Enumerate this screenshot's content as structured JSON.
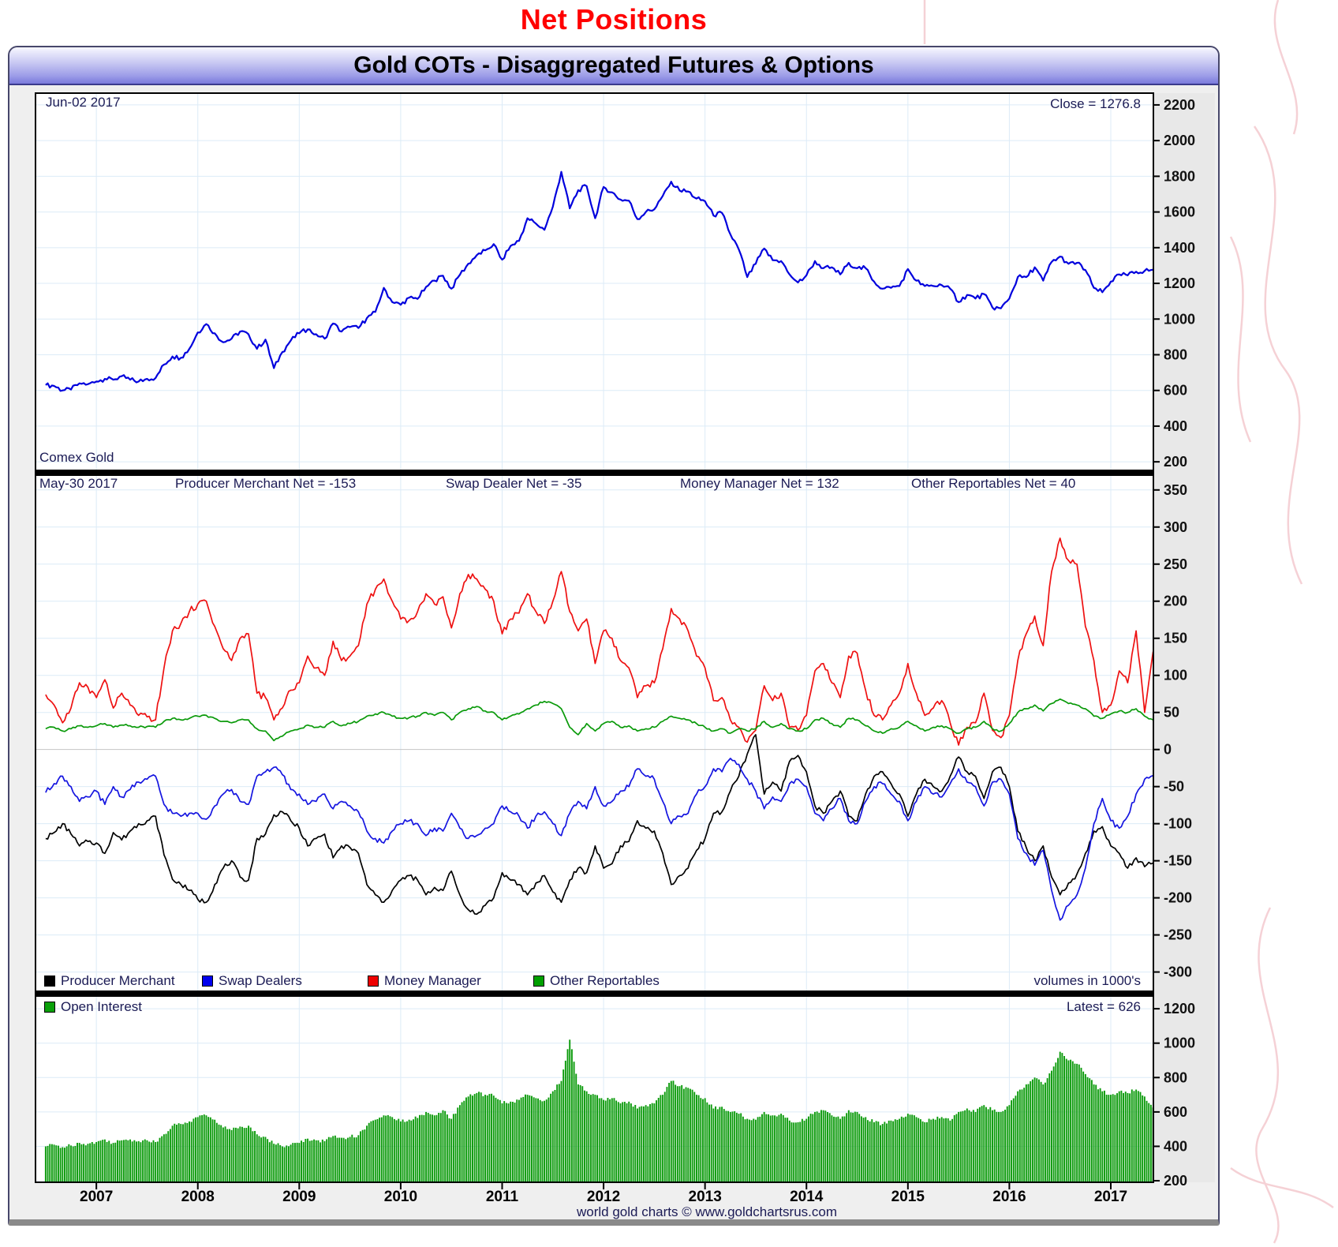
{
  "page_title": "Net Positions",
  "window": {
    "title": "Gold COTs - Disaggregated Futures & Options"
  },
  "panels": {
    "price": {
      "date_label": "Jun-02  2017",
      "close_label": "Close = 1276.8",
      "name_label": "Comex Gold"
    },
    "nets": {
      "date_label": "May-30  2017",
      "stats": [
        "Producer Merchant Net = -153",
        "Swap Dealer Net = -35",
        "Money Manager Net = 132",
        "Other Reportables Net = 40"
      ],
      "legend": [
        {
          "label": "Producer Merchant",
          "color": "#000000"
        },
        {
          "label": "Swap Dealers",
          "color": "#0000ee"
        },
        {
          "label": "Money Manager",
          "color": "#ee0000"
        },
        {
          "label": "Other Reportables",
          "color": "#00a000"
        }
      ],
      "volumes_note": "volumes in 1000's"
    },
    "oi": {
      "legend_label": "Open Interest",
      "legend_color": "#0aa00a",
      "latest_label": "Latest = 626"
    }
  },
  "footer": "world gold charts © www.goldchartsrus.com",
  "chart_data": [
    {
      "id": "gold-price",
      "type": "line",
      "title": "Comex Gold",
      "x_unit": "month",
      "x_start": 2006.5,
      "x_ticks": [
        2007,
        2008,
        2009,
        2010,
        2011,
        2012,
        2013,
        2014,
        2015,
        2016,
        2017
      ],
      "y_ticks": [
        2200,
        2000,
        1800,
        1600,
        1400,
        1200,
        1000,
        800,
        600,
        400,
        200
      ],
      "ylim": [
        152,
        2266
      ],
      "annotations": [
        "Jun-02 2017",
        "Close = 1276.8",
        "Comex Gold"
      ],
      "series": [
        {
          "name": "Comex Gold",
          "color": "#0000dd",
          "width": 2.2,
          "noise": 26,
          "values": [
            630,
            625,
            600,
            605,
            640,
            635,
            650,
            665,
            660,
            680,
            660,
            650,
            665,
            670,
            745,
            790,
            783,
            833,
            925,
            972,
            920,
            870,
            890,
            930,
            915,
            833,
            885,
            725,
            815,
            880,
            920,
            942,
            915,
            890,
            975,
            930,
            955,
            950,
            1005,
            1040,
            1175,
            1095,
            1080,
            1120,
            1113,
            1180,
            1215,
            1243,
            1170,
            1248,
            1310,
            1358,
            1385,
            1420,
            1333,
            1410,
            1438,
            1565,
            1535,
            1500,
            1630,
            1825,
            1620,
            1722,
            1745,
            1565,
            1740,
            1710,
            1670,
            1663,
            1560,
            1600,
            1615,
            1690,
            1770,
            1720,
            1715,
            1675,
            1660,
            1580,
            1595,
            1475,
            1390,
            1235,
            1310,
            1395,
            1330,
            1325,
            1250,
            1205,
            1245,
            1325,
            1285,
            1290,
            1250,
            1315,
            1285,
            1285,
            1210,
            1170,
            1175,
            1185,
            1280,
            1215,
            1185,
            1185,
            1190,
            1170,
            1095,
            1135,
            1115,
            1140,
            1065,
            1060,
            1115,
            1235,
            1235,
            1290,
            1215,
            1320,
            1350,
            1310,
            1315,
            1275,
            1175,
            1150,
            1210,
            1250,
            1245,
            1265,
            1270,
            1276.8
          ]
        }
      ]
    },
    {
      "id": "net-positions",
      "type": "line",
      "title": "Disaggregated Net Positions (1000's of contracts)",
      "x_unit": "month",
      "x_start": 2006.5,
      "x_ticks": [
        2007,
        2008,
        2009,
        2010,
        2011,
        2012,
        2013,
        2014,
        2015,
        2016,
        2017
      ],
      "y_ticks": [
        350,
        300,
        250,
        200,
        150,
        100,
        50,
        0,
        -50,
        -100,
        -150,
        -200,
        -250,
        -300
      ],
      "ylim": [
        -326,
        370
      ],
      "latest": {
        "producer_merchant": -153,
        "swap_dealer": -35,
        "money_manager": 132,
        "other_reportables": 40
      },
      "series": [
        {
          "name": "Producer Merchant",
          "color": "#000000",
          "width": 1.7,
          "noise": 7,
          "values": [
            -120,
            -112,
            -100,
            -114,
            -130,
            -124,
            -126,
            -140,
            -112,
            -122,
            -110,
            -100,
            -96,
            -90,
            -142,
            -175,
            -182,
            -190,
            -202,
            -206,
            -182,
            -160,
            -150,
            -172,
            -176,
            -120,
            -114,
            -88,
            -84,
            -96,
            -106,
            -130,
            -120,
            -114,
            -146,
            -130,
            -132,
            -140,
            -182,
            -196,
            -206,
            -190,
            -176,
            -170,
            -176,
            -196,
            -186,
            -190,
            -164,
            -196,
            -216,
            -222,
            -210,
            -200,
            -166,
            -176,
            -182,
            -196,
            -180,
            -170,
            -192,
            -206,
            -176,
            -160,
            -166,
            -130,
            -160,
            -154,
            -130,
            -124,
            -96,
            -106,
            -110,
            -140,
            -182,
            -170,
            -160,
            -136,
            -120,
            -86,
            -84,
            -56,
            -36,
            -6,
            20,
            -60,
            -44,
            -56,
            -16,
            -8,
            -30,
            -76,
            -86,
            -70,
            -56,
            -90,
            -96,
            -60,
            -36,
            -30,
            -46,
            -60,
            -90,
            -60,
            -40,
            -50,
            -56,
            -36,
            -10,
            -30,
            -36,
            -66,
            -30,
            -24,
            -50,
            -110,
            -132,
            -150,
            -130,
            -172,
            -196,
            -180,
            -168,
            -140,
            -110,
            -104,
            -130,
            -140,
            -160,
            -146,
            -158,
            -153
          ]
        },
        {
          "name": "Swap Dealers",
          "color": "#1515e0",
          "width": 1.7,
          "noise": 7,
          "values": [
            -58,
            -46,
            -36,
            -50,
            -70,
            -64,
            -56,
            -74,
            -50,
            -64,
            -54,
            -44,
            -40,
            -36,
            -74,
            -86,
            -90,
            -86,
            -86,
            -94,
            -76,
            -60,
            -54,
            -70,
            -74,
            -36,
            -30,
            -24,
            -34,
            -54,
            -60,
            -74,
            -70,
            -60,
            -80,
            -70,
            -76,
            -84,
            -110,
            -120,
            -126,
            -110,
            -100,
            -96,
            -100,
            -116,
            -106,
            -110,
            -86,
            -106,
            -120,
            -116,
            -106,
            -100,
            -76,
            -84,
            -90,
            -106,
            -90,
            -84,
            -100,
            -116,
            -86,
            -70,
            -80,
            -50,
            -76,
            -70,
            -56,
            -50,
            -26,
            -36,
            -40,
            -70,
            -100,
            -90,
            -86,
            -60,
            -50,
            -26,
            -30,
            -12,
            -20,
            -40,
            -56,
            -80,
            -64,
            -70,
            -46,
            -40,
            -50,
            -86,
            -96,
            -80,
            -66,
            -96,
            -100,
            -70,
            -50,
            -46,
            -60,
            -70,
            -96,
            -70,
            -50,
            -60,
            -64,
            -46,
            -26,
            -44,
            -50,
            -76,
            -44,
            -40,
            -60,
            -120,
            -140,
            -156,
            -136,
            -190,
            -230,
            -210,
            -196,
            -160,
            -100,
            -66,
            -96,
            -106,
            -90,
            -60,
            -40,
            -35
          ]
        },
        {
          "name": "Money Manager",
          "color": "#ee1111",
          "width": 1.7,
          "noise": 9,
          "values": [
            74,
            60,
            36,
            56,
            90,
            84,
            70,
            94,
            56,
            76,
            60,
            46,
            44,
            40,
            110,
            160,
            170,
            186,
            196,
            200,
            166,
            136,
            120,
            150,
            156,
            76,
            70,
            40,
            56,
            80,
            90,
            126,
            110,
            100,
            146,
            120,
            126,
            140,
            196,
            216,
            230,
            200,
            176,
            174,
            186,
            210,
            196,
            206,
            164,
            210,
            236,
            230,
            216,
            200,
            156,
            176,
            184,
            210,
            186,
            170,
            200,
            240,
            186,
            160,
            176,
            116,
            160,
            150,
            120,
            110,
            70,
            86,
            90,
            136,
            190,
            176,
            160,
            126,
            110,
            66,
            70,
            40,
            30,
            10,
            26,
            86,
            66,
            76,
            30,
            26,
            46,
            106,
            116,
            90,
            70,
            126,
            130,
            80,
            46,
            40,
            60,
            76,
            116,
            76,
            46,
            56,
            66,
            36,
            6,
            30,
            36,
            76,
            26,
            16,
            46,
            120,
            156,
            180,
            140,
            240,
            285,
            255,
            250,
            166,
            120,
            50,
            60,
            106,
            90,
            160,
            50,
            132
          ]
        },
        {
          "name": "Other Reportables",
          "color": "#0a9a0a",
          "width": 1.7,
          "noise": 3,
          "values": [
            28,
            30,
            25,
            28,
            32,
            30,
            32,
            35,
            30,
            33,
            32,
            30,
            31,
            30,
            38,
            42,
            40,
            42,
            45,
            46,
            42,
            38,
            36,
            40,
            40,
            28,
            25,
            12,
            18,
            25,
            28,
            33,
            30,
            30,
            38,
            32,
            35,
            38,
            45,
            48,
            50,
            45,
            42,
            43,
            45,
            50,
            46,
            50,
            40,
            50,
            55,
            58,
            52,
            50,
            40,
            45,
            48,
            55,
            60,
            65,
            62,
            55,
            30,
            20,
            35,
            25,
            35,
            38,
            30,
            32,
            25,
            28,
            30,
            38,
            45,
            42,
            40,
            35,
            30,
            25,
            28,
            22,
            28,
            25,
            28,
            38,
            30,
            35,
            28,
            25,
            28,
            40,
            42,
            35,
            30,
            42,
            40,
            32,
            25,
            22,
            28,
            30,
            38,
            32,
            25,
            30,
            32,
            28,
            22,
            28,
            30,
            38,
            28,
            25,
            35,
            50,
            55,
            60,
            52,
            62,
            68,
            62,
            60,
            55,
            45,
            42,
            48,
            52,
            50,
            55,
            45,
            40
          ]
        }
      ]
    },
    {
      "id": "open-interest",
      "type": "bar",
      "title": "Open Interest (volumes in 1000's)",
      "x_unit": "month",
      "x_start": 2006.5,
      "x_ticks": [
        2007,
        2008,
        2009,
        2010,
        2011,
        2012,
        2013,
        2014,
        2015,
        2016,
        2017
      ],
      "y_ticks": [
        1200,
        1000,
        800,
        600,
        400,
        200
      ],
      "ylim": [
        191,
        1274
      ],
      "latest": 626,
      "series": [
        {
          "name": "Open Interest",
          "color": "#0a9a0a",
          "noise": 22,
          "values": [
            400,
            410,
            395,
            405,
            420,
            415,
            425,
            440,
            420,
            435,
            440,
            430,
            435,
            425,
            470,
            520,
            530,
            545,
            570,
            580,
            555,
            510,
            495,
            515,
            520,
            470,
            455,
            415,
            400,
            410,
            420,
            445,
            435,
            430,
            460,
            450,
            455,
            465,
            520,
            555,
            580,
            570,
            545,
            555,
            565,
            600,
            580,
            610,
            560,
            640,
            690,
            710,
            700,
            695,
            650,
            660,
            670,
            700,
            680,
            665,
            720,
            780,
            1020,
            760,
            720,
            700,
            670,
            680,
            650,
            660,
            620,
            640,
            650,
            700,
            780,
            750,
            740,
            700,
            680,
            620,
            630,
            600,
            590,
            560,
            555,
            600,
            580,
            590,
            550,
            540,
            560,
            600,
            610,
            580,
            560,
            610,
            600,
            570,
            540,
            530,
            550,
            560,
            590,
            570,
            540,
            560,
            570,
            550,
            600,
            620,
            600,
            640,
            610,
            600,
            640,
            720,
            760,
            800,
            760,
            840,
            950,
            900,
            880,
            820,
            760,
            720,
            700,
            720,
            710,
            730,
            690,
            626
          ]
        }
      ]
    }
  ]
}
